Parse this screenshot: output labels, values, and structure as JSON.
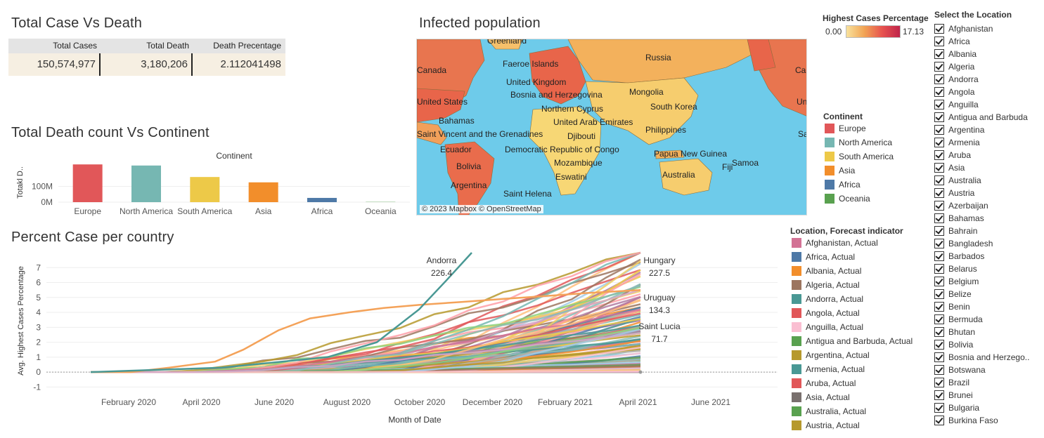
{
  "titles": {
    "total_case_vs_death": "Total Case Vs Death",
    "total_death_vs_continent": "Total Death count Vs Continent",
    "infected_population": "Infected population",
    "percent_case_per_country": "Percent Case per country"
  },
  "kpi_table": {
    "headers": [
      "Total Cases",
      "Total Death",
      "Death Precentage"
    ],
    "values": [
      "150,574,977",
      "3,180,206",
      "2.112041498"
    ]
  },
  "colors": {
    "europe": "#e15759",
    "north_america": "#76b7b2",
    "south_america": "#edc948",
    "asia": "#f28e2b",
    "africa": "#4e79a7",
    "oceania": "#59a14f",
    "ocean": "#6ecbea"
  },
  "chart_data": [
    {
      "type": "bar",
      "title": "Continent",
      "categories": [
        "Europe",
        "North America",
        "South America",
        "Asia",
        "Africa",
        "Oceania"
      ],
      "values": [
        240000000,
        233000000,
        160000000,
        126000000,
        27000000,
        1500000
      ],
      "ylabel": "Totakl D..",
      "yticks": [
        "100M",
        "0M"
      ],
      "ylim": [
        0,
        250000000
      ]
    },
    {
      "type": "line",
      "xlabel": "Month of Date",
      "ylabel": "Avg. Highest Cases Percentage",
      "x_ticks": [
        "February 2020",
        "April 2020",
        "June 2020",
        "August 2020",
        "October 2020",
        "December 2020",
        "February 2021",
        "April 2021",
        "June 2021"
      ],
      "y_ticks": [
        "7",
        "6",
        "5",
        "4",
        "3",
        "2",
        "1",
        "0",
        "-1"
      ],
      "ylim": [
        -1.5,
        8
      ],
      "annotations": [
        {
          "name": "Andorra",
          "value": "226.4"
        },
        {
          "name": "Hungary",
          "value": "227.5"
        },
        {
          "name": "Uruguay",
          "value": "134.3"
        },
        {
          "name": "Saint Lucia",
          "value": "71.7"
        }
      ]
    }
  ],
  "map": {
    "attribution": "© 2023 Mapbox © OpenStreetMap",
    "labels": [
      "Greenland",
      "Russia",
      "Canada",
      "Faeroe Islands",
      "United Kingdom",
      "Bosnia and Herzegovina",
      "Mongolia",
      "United States",
      "Northern Cyprus",
      "South Korea",
      "Bahamas",
      "United Arab Emirates",
      "Saint Vincent and the Grenadines",
      "Djibouti",
      "Philippines",
      "Ecuador",
      "Democratic Republic of Congo",
      "Papua New Guinea",
      "Bolivia",
      "Mozambique",
      "Samoa",
      "Fiji",
      "Eswatini",
      "Australia",
      "Argentina",
      "Saint Helena",
      "Ca",
      "Un",
      "Sa"
    ]
  },
  "legend_gradient": {
    "title": "Highest Cases Percentage",
    "min": "0.00",
    "max": "17.13"
  },
  "legend_continent": {
    "title": "Continent",
    "items": [
      "Europe",
      "North America",
      "South America",
      "Asia",
      "Africa",
      "Oceania"
    ]
  },
  "legend_forecast": {
    "title": "Location, Forecast indicator",
    "items": [
      {
        "label": "Afghanistan, Actual",
        "color": "#d37295"
      },
      {
        "label": "Africa, Actual",
        "color": "#4e79a7"
      },
      {
        "label": "Albania, Actual",
        "color": "#f28e2b"
      },
      {
        "label": "Algeria, Actual",
        "color": "#9c755f"
      },
      {
        "label": "Andorra, Actual",
        "color": "#499894"
      },
      {
        "label": "Angola, Actual",
        "color": "#e15759"
      },
      {
        "label": "Anguilla, Actual",
        "color": "#fabfd2"
      },
      {
        "label": "Antigua and Barbuda, Actual",
        "color": "#59a14f"
      },
      {
        "label": "Argentina, Actual",
        "color": "#b6992d"
      },
      {
        "label": "Armenia, Actual",
        "color": "#499894"
      },
      {
        "label": "Aruba, Actual",
        "color": "#e15759"
      },
      {
        "label": "Asia, Actual",
        "color": "#79706e"
      },
      {
        "label": "Australia, Actual",
        "color": "#59a14f"
      },
      {
        "label": "Austria, Actual",
        "color": "#b6992d"
      }
    ]
  },
  "filter": {
    "title": "Select the Location",
    "items": [
      "Afghanistan",
      "Africa",
      "Albania",
      "Algeria",
      "Andorra",
      "Angola",
      "Anguilla",
      "Antigua and Barbuda",
      "Argentina",
      "Armenia",
      "Aruba",
      "Asia",
      "Australia",
      "Austria",
      "Azerbaijan",
      "Bahamas",
      "Bahrain",
      "Bangladesh",
      "Barbados",
      "Belarus",
      "Belgium",
      "Belize",
      "Benin",
      "Bermuda",
      "Bhutan",
      "Bolivia",
      "Bosnia and Herzego..",
      "Botswana",
      "Brazil",
      "Brunei",
      "Bulgaria",
      "Burkina Faso"
    ]
  }
}
